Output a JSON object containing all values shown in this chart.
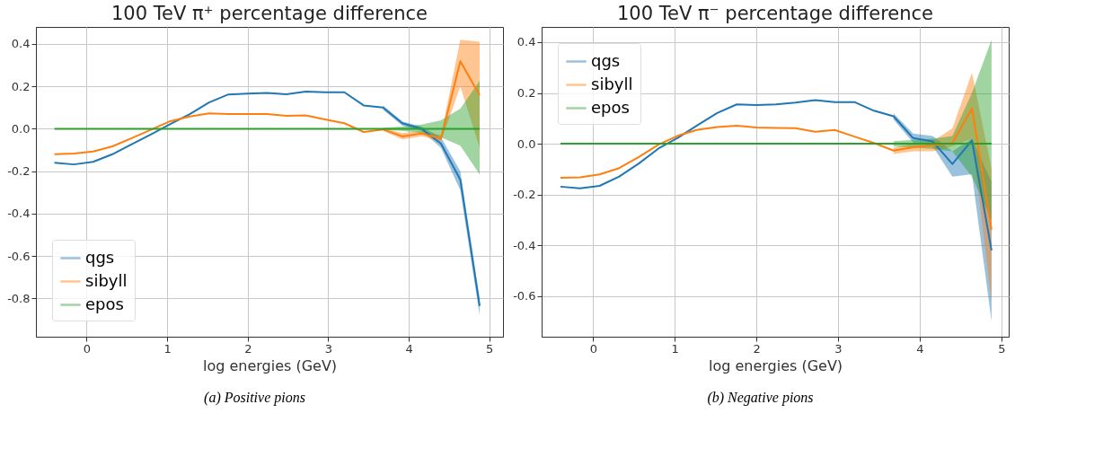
{
  "chart_data": [
    {
      "type": "line",
      "title": "100 TeV π⁺ percentage difference",
      "xlabel": "log energies (GeV)",
      "x": [
        -0.4,
        -0.16,
        0.08,
        0.32,
        0.56,
        0.8,
        1.04,
        1.28,
        1.52,
        1.76,
        2.0,
        2.24,
        2.48,
        2.72,
        2.96,
        3.2,
        3.44,
        3.68,
        3.92,
        4.16,
        4.4,
        4.64,
        4.88
      ],
      "series": [
        {
          "name": "qgs",
          "color": "#1f77b4",
          "values": [
            -0.16,
            -0.168,
            -0.156,
            -0.12,
            -0.073,
            -0.026,
            0.022,
            0.069,
            0.124,
            0.162,
            0.166,
            0.169,
            0.163,
            0.175,
            0.172,
            0.172,
            0.11,
            0.1,
            0.026,
            0.0,
            -0.07,
            -0.24,
            -0.835
          ],
          "lower": [
            null,
            null,
            null,
            null,
            null,
            null,
            null,
            null,
            null,
            null,
            null,
            null,
            null,
            null,
            null,
            null,
            null,
            0.09,
            0.015,
            -0.01,
            -0.09,
            -0.29,
            -0.88
          ],
          "upper": [
            null,
            null,
            null,
            null,
            null,
            null,
            null,
            null,
            null,
            null,
            null,
            null,
            null,
            null,
            null,
            null,
            null,
            0.11,
            0.035,
            0.01,
            -0.04,
            -0.2,
            -0.8
          ]
        },
        {
          "name": "sibyll",
          "color": "#ff7f0e",
          "values": [
            -0.12,
            -0.117,
            -0.107,
            -0.083,
            -0.044,
            -0.004,
            0.036,
            0.058,
            0.073,
            0.07,
            0.07,
            0.07,
            0.061,
            0.063,
            0.044,
            0.026,
            -0.015,
            -0.003,
            -0.036,
            -0.022,
            -0.047,
            0.318,
            0.158
          ],
          "lower": [
            null,
            null,
            null,
            null,
            null,
            null,
            null,
            null,
            null,
            null,
            null,
            null,
            null,
            null,
            null,
            null,
            null,
            -0.01,
            -0.05,
            -0.035,
            -0.06,
            0.2,
            -0.09
          ],
          "upper": [
            null,
            null,
            null,
            null,
            null,
            null,
            null,
            null,
            null,
            null,
            null,
            null,
            null,
            null,
            null,
            null,
            null,
            0.005,
            -0.02,
            -0.01,
            -0.03,
            0.42,
            0.41
          ]
        },
        {
          "name": "epos",
          "color": "#2ca02c",
          "values": [
            0,
            0,
            0,
            0,
            0,
            0,
            0,
            0,
            0,
            0,
            0,
            0,
            0,
            0,
            0,
            0,
            0,
            0,
            0,
            0,
            0,
            0,
            0
          ],
          "lower": [
            null,
            null,
            null,
            null,
            null,
            null,
            null,
            null,
            null,
            null,
            null,
            null,
            null,
            null,
            null,
            null,
            null,
            -0.005,
            -0.01,
            -0.02,
            -0.04,
            -0.08,
            -0.215
          ],
          "upper": [
            null,
            null,
            null,
            null,
            null,
            null,
            null,
            null,
            null,
            null,
            null,
            null,
            null,
            null,
            null,
            null,
            null,
            0.005,
            0.01,
            0.02,
            0.04,
            0.095,
            0.226
          ]
        }
      ],
      "xlim": [
        -0.63,
        5.17
      ],
      "ylim": [
        -0.98,
        0.48
      ],
      "xticks": [
        0,
        1,
        2,
        3,
        4,
        5
      ],
      "yticks": [
        -0.8,
        -0.6,
        -0.4,
        -0.2,
        {
          "value": 0,
          "label": "0.0"
        },
        0.2,
        0.4
      ],
      "grid": true,
      "legend": "bottom left",
      "annotations": [
        "(a) Positive pions"
      ]
    },
    {
      "type": "line",
      "title": "100 TeV π⁻ percentage difference",
      "xlabel": "log energies (GeV)",
      "x": [
        -0.4,
        -0.16,
        0.08,
        0.32,
        0.56,
        0.8,
        1.04,
        1.28,
        1.52,
        1.76,
        2.0,
        2.24,
        2.48,
        2.72,
        2.96,
        3.2,
        3.44,
        3.68,
        3.92,
        4.16,
        4.4,
        4.64,
        4.88
      ],
      "series": [
        {
          "name": "qgs",
          "color": "#1f77b4",
          "values": [
            -0.169,
            -0.176,
            -0.166,
            -0.129,
            -0.078,
            -0.019,
            0.024,
            0.073,
            0.121,
            0.155,
            0.152,
            0.155,
            0.162,
            0.172,
            0.164,
            0.164,
            0.13,
            0.108,
            0.022,
            0.009,
            -0.08,
            0.013,
            -0.42
          ],
          "lower": [
            null,
            null,
            null,
            null,
            null,
            null,
            null,
            null,
            null,
            null,
            null,
            null,
            null,
            null,
            null,
            null,
            null,
            0.095,
            0.005,
            -0.01,
            -0.13,
            -0.12,
            -0.7
          ],
          "upper": [
            null,
            null,
            null,
            null,
            null,
            null,
            null,
            null,
            null,
            null,
            null,
            null,
            null,
            null,
            null,
            null,
            null,
            0.12,
            0.04,
            0.03,
            -0.03,
            0.02,
            -0.15
          ]
        },
        {
          "name": "sibyll",
          "color": "#ff7f0e",
          "values": [
            -0.134,
            -0.132,
            -0.121,
            -0.096,
            -0.052,
            -0.004,
            0.032,
            0.055,
            0.066,
            0.071,
            0.064,
            0.062,
            0.061,
            0.047,
            0.054,
            0.028,
            0.003,
            -0.027,
            -0.014,
            -0.006,
            0.003,
            0.139,
            -0.338
          ],
          "lower": [
            null,
            null,
            null,
            null,
            null,
            null,
            null,
            null,
            null,
            null,
            null,
            null,
            null,
            null,
            null,
            null,
            null,
            -0.04,
            -0.03,
            -0.03,
            -0.01,
            0.02,
            -0.62
          ],
          "upper": [
            null,
            null,
            null,
            null,
            null,
            null,
            null,
            null,
            null,
            null,
            null,
            null,
            null,
            null,
            null,
            null,
            null,
            -0.015,
            0.0,
            0.01,
            0.06,
            0.28,
            -0.1
          ]
        },
        {
          "name": "epos",
          "color": "#2ca02c",
          "values": [
            0,
            0,
            0,
            0,
            0,
            0,
            0,
            0,
            0,
            0,
            0,
            0,
            0,
            0,
            0,
            0,
            0,
            0,
            0,
            0,
            0,
            0,
            0
          ],
          "lower": [
            null,
            null,
            null,
            null,
            null,
            null,
            null,
            null,
            null,
            null,
            null,
            null,
            null,
            null,
            null,
            null,
            null,
            -0.01,
            -0.015,
            -0.02,
            -0.03,
            -0.13,
            -0.3
          ],
          "upper": [
            null,
            null,
            null,
            null,
            null,
            null,
            null,
            null,
            null,
            null,
            null,
            null,
            null,
            null,
            null,
            null,
            null,
            0.01,
            0.015,
            0.02,
            0.03,
            0.2,
            0.41
          ]
        }
      ],
      "xlim": [
        -0.63,
        5.09
      ],
      "ylim": [
        -0.76,
        0.46
      ],
      "xticks": [
        0,
        1,
        2,
        3,
        4,
        5
      ],
      "yticks": [
        -0.6,
        -0.4,
        -0.2,
        {
          "value": 0,
          "label": "0.0"
        },
        0.2,
        0.4
      ],
      "grid": true,
      "legend": "top left",
      "annotations": [
        "(b) Negative pions"
      ]
    }
  ]
}
